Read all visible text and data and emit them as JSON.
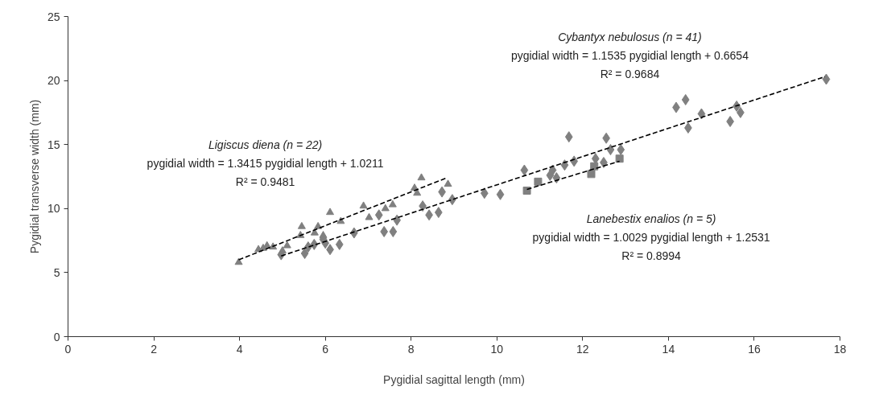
{
  "chart_data": {
    "type": "scatter",
    "xlabel": "Pygidial sagittal length (mm)",
    "ylabel": "Pygidial transverse width (mm)",
    "xlim": [
      0,
      18
    ],
    "xticks": [
      0,
      2,
      4,
      6,
      8,
      10,
      12,
      14,
      16,
      18
    ],
    "ylim": [
      0,
      25
    ],
    "yticks": [
      0,
      5,
      10,
      15,
      20,
      25
    ],
    "grid": false,
    "series": [
      {
        "color": "#808080",
        "marker": "triangle",
        "x": [
          3.98,
          4.44,
          4.64,
          4.78,
          5.0,
          5.11,
          5.42,
          5.45,
          5.75,
          5.83,
          5.95,
          6.11,
          6.36,
          6.89,
          7.02,
          7.4,
          7.57,
          8.08,
          8.14,
          8.24,
          8.86,
          4.55
        ],
        "values": [
          5.8,
          6.8,
          7.1,
          7.0,
          6.7,
          7.1,
          7.9,
          8.6,
          8.1,
          8.6,
          7.9,
          9.7,
          9.0,
          10.2,
          9.3,
          10.0,
          10.3,
          11.6,
          11.2,
          12.4,
          11.9,
          6.9
        ]
      },
      {
        "color": "#808080",
        "marker": "diamond",
        "x": [
          4.97,
          5.52,
          5.6,
          5.74,
          5.95,
          6.0,
          6.11,
          6.33,
          6.67,
          7.25,
          7.37,
          7.58,
          7.67,
          8.27,
          8.42,
          8.64,
          8.72,
          8.96,
          9.71,
          10.08,
          10.64,
          11.24,
          11.3,
          11.39,
          11.58,
          11.68,
          11.8,
          12.3,
          12.49,
          12.55,
          12.65,
          12.89,
          14.18,
          14.4,
          14.46,
          14.77,
          15.44,
          15.59,
          15.68,
          17.68
        ],
        "values": [
          6.4,
          6.5,
          7.0,
          7.2,
          7.6,
          7.3,
          6.8,
          7.2,
          8.1,
          9.5,
          8.2,
          8.2,
          9.1,
          10.2,
          9.5,
          9.7,
          11.3,
          10.7,
          11.2,
          11.1,
          13.0,
          12.6,
          13.0,
          12.4,
          13.4,
          15.6,
          13.7,
          13.9,
          13.6,
          15.5,
          14.6,
          14.6,
          17.9,
          18.5,
          16.3,
          17.4,
          16.8,
          18.0,
          17.5,
          20.1
        ]
      },
      {
        "color": "#808080",
        "marker": "square",
        "x": [
          10.7,
          10.96,
          12.2,
          12.27,
          12.86
        ],
        "values": [
          11.4,
          12.1,
          12.7,
          13.3,
          13.9
        ]
      },
      {
        "type": "line",
        "color": "#000000",
        "line_style": "dashed",
        "marker": "none",
        "x": [
          3.98,
          8.83
        ],
        "values": [
          6.0,
          12.4
        ]
      },
      {
        "type": "line",
        "color": "#000000",
        "line_style": "dashed",
        "marker": "none",
        "x": [
          4.97,
          17.65
        ],
        "values": [
          6.3,
          20.3
        ]
      },
      {
        "type": "line",
        "color": "#000000",
        "line_style": "dashed",
        "marker": "none",
        "x": [
          10.7,
          12.86
        ],
        "values": [
          11.5,
          13.7
        ]
      }
    ],
    "annotations": [
      "Cybantyx nebulosus (n = 41)\npygidial width = 1.1535 pygidial length + 0.6654\nR² = 0.9684",
      "Ligiscus diena (n = 22)\npygidial width = 1.3415 pygidial length + 1.0211\nR² = 0.9481",
      "Lanebestix enalios (n = 5)\npygidial width = 1.0029 pygidial length + 1.2531\nR² = 0.8994"
    ]
  }
}
